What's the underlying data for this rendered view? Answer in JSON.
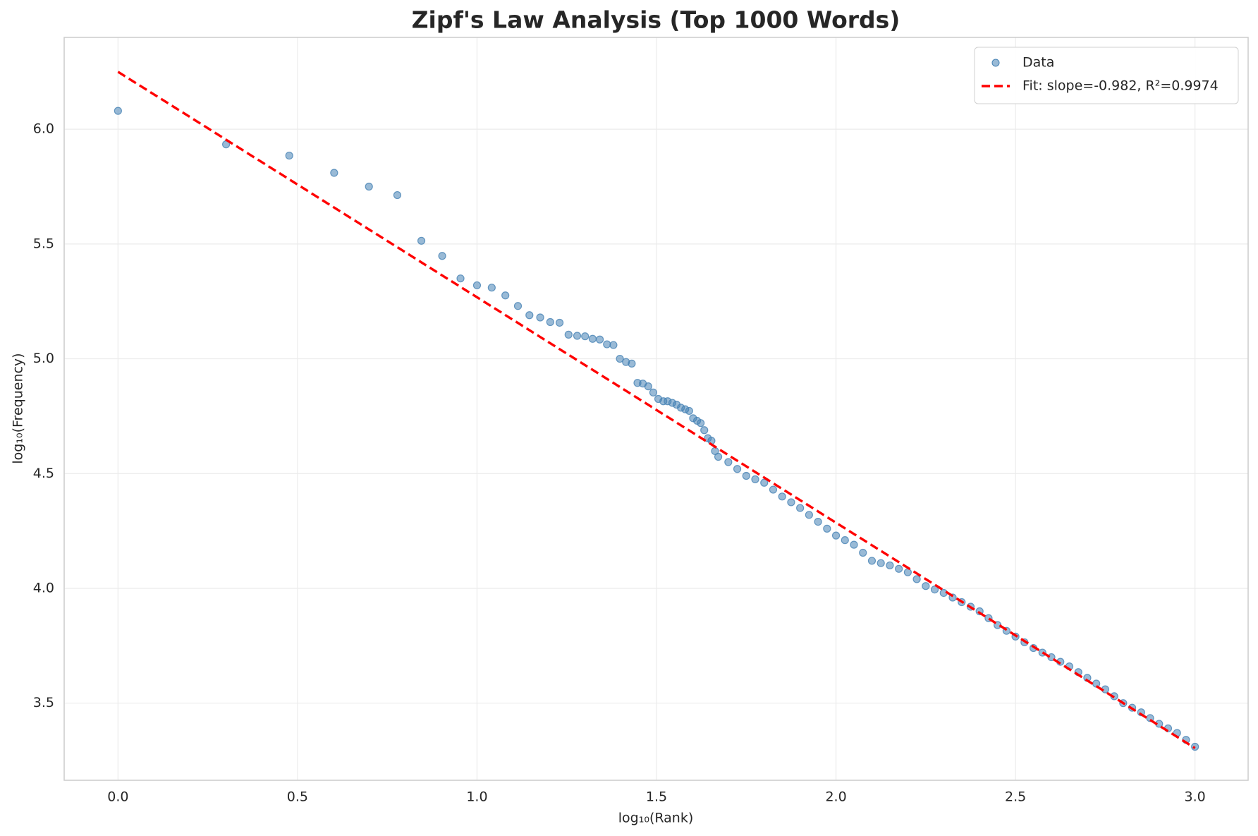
{
  "chart_data": {
    "type": "scatter",
    "title": "Zipf's Law Analysis (Top 1000 Words)",
    "x_label": "log₁₀(Rank)",
    "y_label": "log₁₀(Frequency)",
    "xlim": [
      -0.15,
      3.148
    ],
    "ylim": [
      3.164,
      6.4
    ],
    "xticks": [
      {
        "value": 0,
        "label": "0.0"
      },
      0.5,
      {
        "value": 1,
        "label": "1.0"
      },
      1.5,
      {
        "value": 2,
        "label": "2.0"
      },
      2.5,
      {
        "value": 3,
        "label": "3.0"
      }
    ],
    "yticks": [
      3.5,
      {
        "value": 4,
        "label": "4.0"
      },
      4.5,
      {
        "value": 5,
        "label": "5.0"
      },
      5.5,
      {
        "value": 6,
        "label": "6.0"
      }
    ],
    "grid": true,
    "legend": "upper right",
    "series": [
      {
        "name": "Data",
        "color": "#4682b4",
        "kind": "scatter",
        "x": [
          0,
          0.301,
          0.477,
          0.602,
          0.699,
          0.778,
          0.845,
          0.903,
          0.954,
          1.0,
          1.041,
          1.079,
          1.114,
          1.146,
          1.176,
          1.204,
          1.23,
          1.255,
          1.279,
          1.301,
          1.322,
          1.342,
          1.362,
          1.38,
          1.398,
          1.415,
          1.431,
          1.447,
          1.462,
          1.477,
          1.491,
          1.505,
          1.519,
          1.531,
          1.544,
          1.556,
          1.568,
          1.58,
          1.591,
          1.602,
          1.613,
          1.623,
          1.633,
          1.643,
          1.653,
          1.663,
          1.672,
          1.7,
          1.725,
          1.75,
          1.775,
          1.8,
          1.825,
          1.85,
          1.875,
          1.9,
          1.925,
          1.95,
          1.975,
          2.0,
          2.025,
          2.05,
          2.075,
          2.1,
          2.125,
          2.15,
          2.175,
          2.2,
          2.225,
          2.25,
          2.275,
          2.3,
          2.325,
          2.35,
          2.375,
          2.4,
          2.425,
          2.45,
          2.475,
          2.5,
          2.525,
          2.55,
          2.575,
          2.6,
          2.625,
          2.65,
          2.675,
          2.7,
          2.725,
          2.75,
          2.775,
          2.8,
          2.825,
          2.85,
          2.875,
          2.9,
          2.925,
          2.95,
          2.975,
          3.0
        ],
        "values": [
          6.08,
          5.934,
          5.885,
          5.81,
          5.75,
          5.713,
          5.514,
          5.448,
          5.35,
          5.32,
          5.31,
          5.276,
          5.23,
          5.19,
          5.18,
          5.16,
          5.157,
          5.105,
          5.1,
          5.098,
          5.087,
          5.084,
          5.063,
          5.06,
          5.0,
          4.986,
          4.979,
          4.895,
          4.892,
          4.88,
          4.853,
          4.825,
          4.815,
          4.815,
          4.808,
          4.8,
          4.787,
          4.78,
          4.773,
          4.741,
          4.73,
          4.72,
          4.689,
          4.654,
          4.643,
          4.598,
          4.573,
          4.55,
          4.52,
          4.49,
          4.475,
          4.46,
          4.43,
          4.4,
          4.375,
          4.35,
          4.32,
          4.29,
          4.26,
          4.23,
          4.21,
          4.19,
          4.155,
          4.12,
          4.11,
          4.1,
          4.085,
          4.07,
          4.04,
          4.01,
          3.995,
          3.98,
          3.96,
          3.94,
          3.92,
          3.9,
          3.87,
          3.84,
          3.815,
          3.79,
          3.765,
          3.74,
          3.72,
          3.7,
          3.68,
          3.66,
          3.635,
          3.61,
          3.585,
          3.56,
          3.53,
          3.5,
          3.48,
          3.46,
          3.435,
          3.41,
          3.39,
          3.37,
          3.34,
          3.31
        ]
      },
      {
        "name": "Fit: slope=-0.982, R²=0.9974",
        "color": "#ff0000",
        "kind": "line",
        "x": [
          0,
          3.0
        ],
        "values": [
          6.25,
          3.304
        ]
      }
    ]
  }
}
